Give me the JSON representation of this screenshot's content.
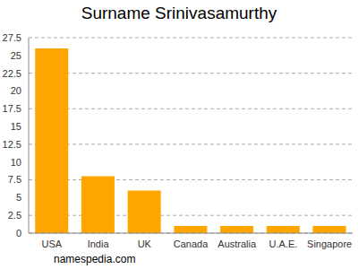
{
  "chart_data": {
    "type": "bar",
    "title": "Surname Srinivasamurthy",
    "categories": [
      "USA",
      "India",
      "UK",
      "Canada",
      "Australia",
      "U.A.E.",
      "Singapore"
    ],
    "values": [
      26,
      8,
      6,
      1,
      1,
      1,
      1
    ],
    "color": "#ffa500",
    "ylim": [
      0,
      27.5
    ],
    "yticks": [
      0,
      2.5,
      5,
      7.5,
      10,
      12.5,
      15,
      17.5,
      20,
      22.5,
      25,
      27.5
    ],
    "grid": true,
    "annotations": [
      "namespedia.com"
    ]
  }
}
